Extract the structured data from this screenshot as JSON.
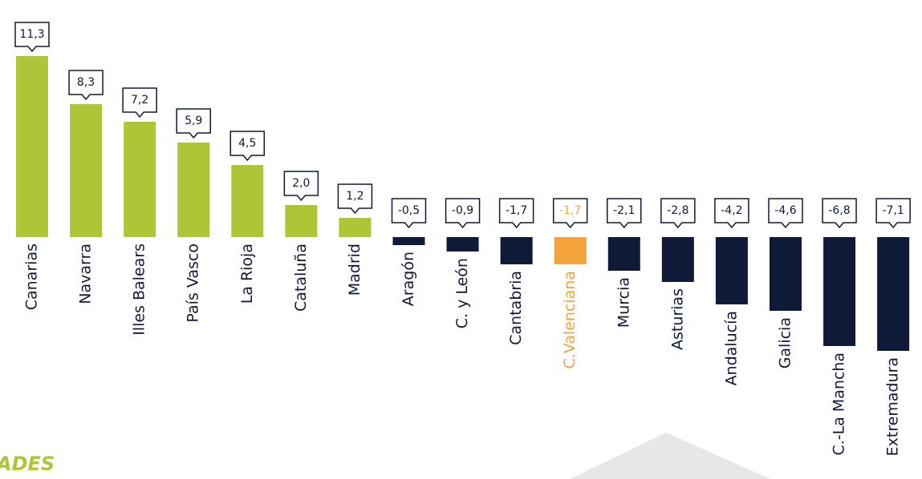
{
  "chart_data": {
    "type": "bar",
    "categories": [
      "Canarias",
      "Navarra",
      "Illes Balears",
      "País Vasco",
      "La Rioja",
      "Cataluña",
      "Madrid",
      "Aragón",
      "C. y León",
      "Cantabria",
      "C.Valenciana",
      "Murcia",
      "Asturias",
      "Andalucía",
      "Galicia",
      "C.-La Mancha",
      "Extremadura"
    ],
    "values": [
      11.3,
      8.3,
      7.2,
      5.9,
      4.5,
      2.0,
      1.2,
      -0.5,
      -0.9,
      -1.7,
      -1.7,
      -2.1,
      -2.8,
      -4.2,
      -4.6,
      -6.8,
      -7.1
    ],
    "value_labels": [
      "11,3",
      "8,3",
      "7,2",
      "5,9",
      "4,5",
      "2,0",
      "1,2",
      "-0,5",
      "-0,9",
      "-1,7",
      "-1,7",
      "-2,1",
      "-2,8",
      "-4,2",
      "-4,6",
      "-6,8",
      "-7,1"
    ],
    "positive_color": "#aec535",
    "negative_color": "#0e1a38",
    "highlight_index": 10,
    "highlight_color": "#f4a23c",
    "annotation": "ADES"
  }
}
